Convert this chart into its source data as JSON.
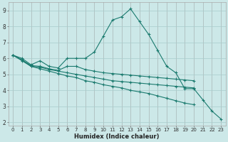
{
  "xlabel": "Humidex (Indice chaleur)",
  "x_values": [
    0,
    1,
    2,
    3,
    4,
    5,
    6,
    7,
    8,
    9,
    10,
    11,
    12,
    13,
    14,
    15,
    16,
    17,
    18,
    19,
    20,
    21,
    22,
    23
  ],
  "line1": [
    6.2,
    6.0,
    5.6,
    5.85,
    5.5,
    5.4,
    6.0,
    6.0,
    6.0,
    6.4,
    7.4,
    8.4,
    8.6,
    9.1,
    8.3,
    7.5,
    6.5,
    5.5,
    5.1,
    4.1,
    4.1,
    3.4,
    2.7,
    2.2
  ],
  "line2": [
    6.2,
    5.9,
    5.55,
    5.5,
    5.35,
    5.25,
    5.5,
    5.5,
    5.3,
    5.2,
    5.1,
    5.05,
    5.0,
    4.95,
    4.9,
    4.85,
    4.8,
    4.75,
    4.7,
    4.65,
    4.6,
    null,
    null,
    null
  ],
  "line3": [
    6.2,
    5.9,
    5.5,
    5.45,
    5.3,
    5.2,
    5.1,
    5.0,
    4.9,
    4.8,
    4.7,
    4.6,
    4.55,
    4.5,
    4.45,
    4.4,
    4.35,
    4.3,
    4.25,
    4.2,
    4.15,
    null,
    null,
    null
  ],
  "line4": [
    6.2,
    5.85,
    5.5,
    5.35,
    5.2,
    5.05,
    4.9,
    4.8,
    4.6,
    4.5,
    4.35,
    4.25,
    4.15,
    4.0,
    3.9,
    3.8,
    3.65,
    3.5,
    3.35,
    3.2,
    3.1,
    null,
    null,
    null
  ],
  "line_color": "#1a7a6e",
  "bg_color": "#cce8e8",
  "grid_color": "#a8cccc",
  "ylim": [
    1.8,
    9.5
  ],
  "xlim": [
    -0.5,
    23.5
  ],
  "yticks": [
    2,
    3,
    4,
    5,
    6,
    7,
    8,
    9
  ],
  "xticks": [
    0,
    1,
    2,
    3,
    4,
    5,
    6,
    7,
    8,
    9,
    10,
    11,
    12,
    13,
    14,
    15,
    16,
    17,
    18,
    19,
    20,
    21,
    22,
    23
  ],
  "tick_fontsize": 5.0,
  "xlabel_fontsize": 6.0,
  "ylabel_fontsize": 6.0
}
